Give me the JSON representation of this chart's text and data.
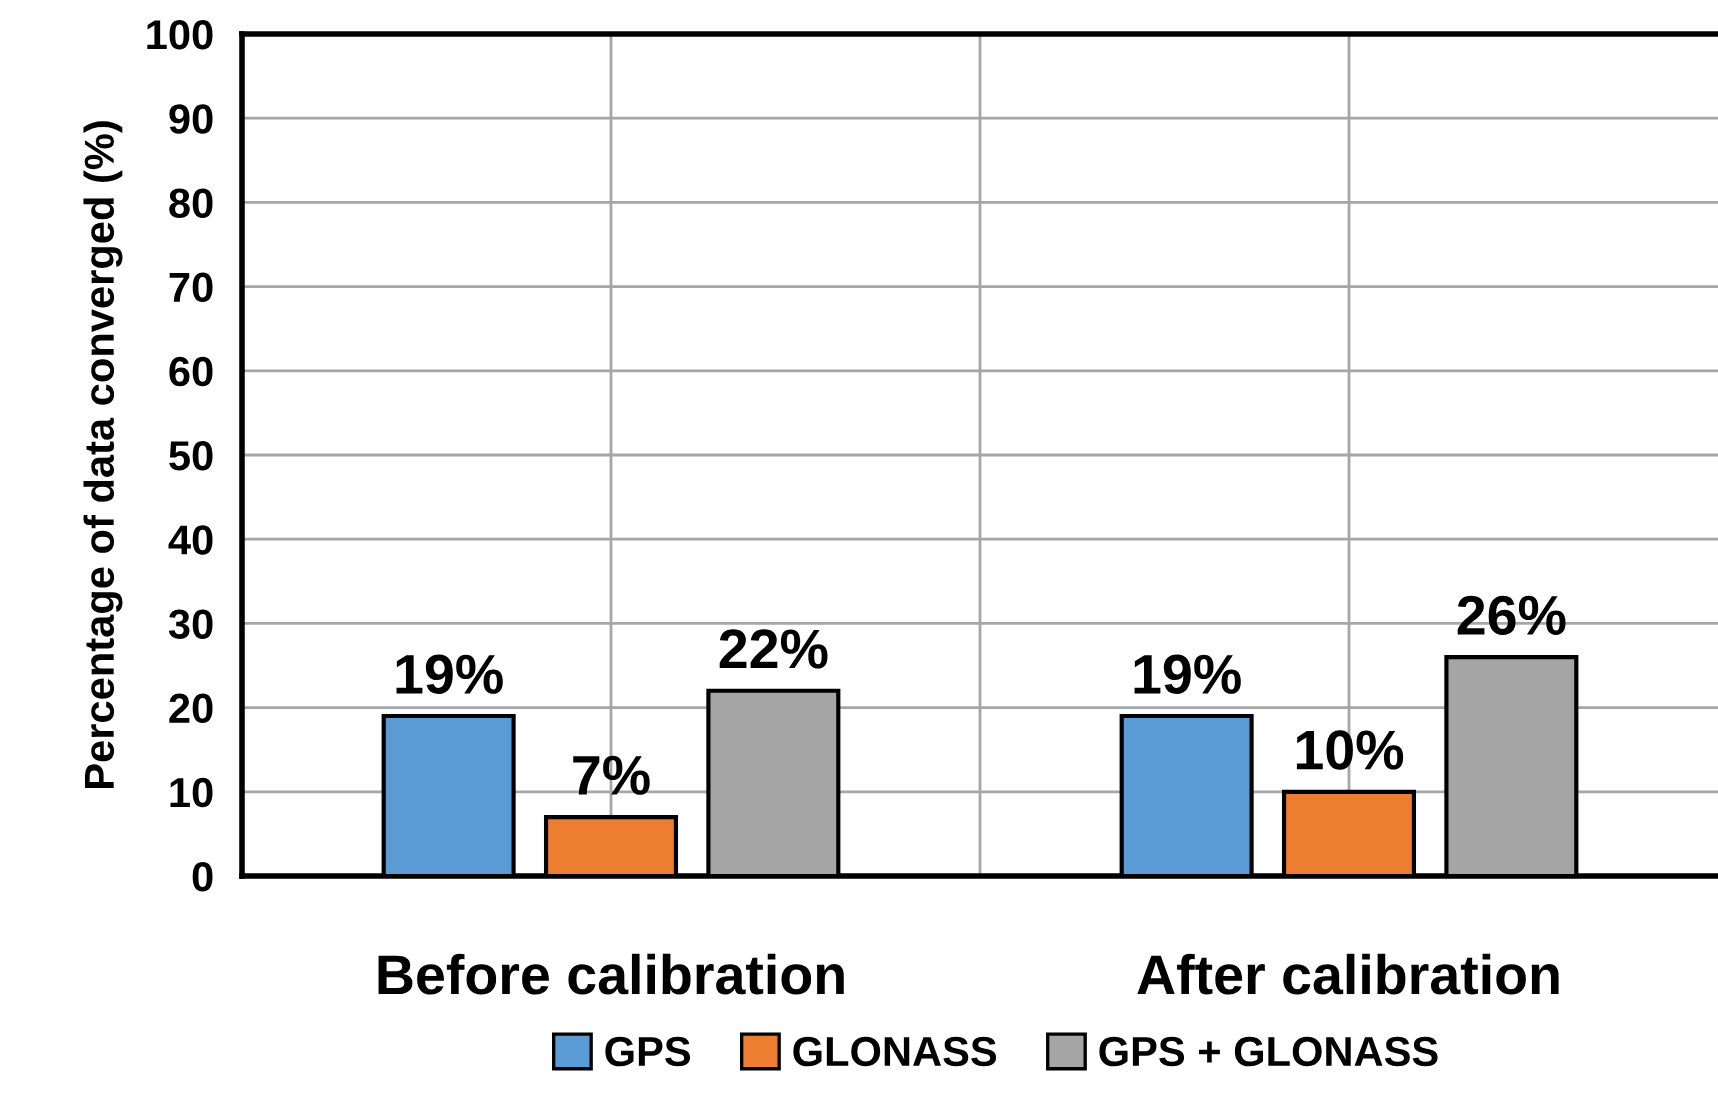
{
  "chart_data": {
    "type": "bar",
    "ylabel": "Percentage of data converged (%)",
    "categories": [
      "Before calibration",
      "After calibration"
    ],
    "series": [
      {
        "name": "GPS",
        "color": "#5b9bd5",
        "values": [
          19,
          19
        ],
        "value_labels": [
          "19%",
          "19%"
        ]
      },
      {
        "name": "GLONASS",
        "color": "#ed7d31",
        "values": [
          7,
          10
        ],
        "value_labels": [
          "7%",
          "10%"
        ]
      },
      {
        "name": "GPS + GLONASS",
        "color": "#a5a5a5",
        "values": [
          22,
          26
        ],
        "value_labels": [
          "22%",
          "26%"
        ]
      }
    ],
    "ylim": [
      0,
      100
    ],
    "yticks": [
      0,
      10,
      20,
      30,
      40,
      50,
      60,
      70,
      80,
      90,
      100
    ],
    "grid": true,
    "legend": "bottom"
  }
}
